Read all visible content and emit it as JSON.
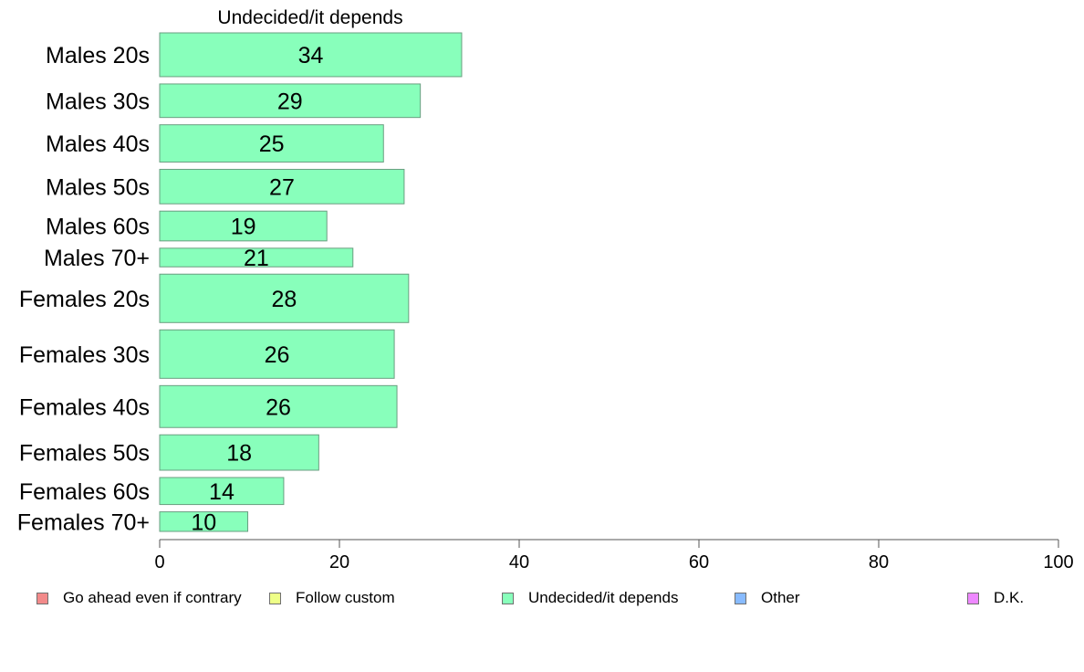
{
  "chart_data": {
    "type": "bar",
    "orientation": "horizontal",
    "title": "Undecided/it depends",
    "categories": [
      "Males 20s",
      "Males 30s",
      "Males 40s",
      "Males 50s",
      "Males 60s",
      "Males 70+",
      "Females 20s",
      "Females 30s",
      "Females 40s",
      "Females 50s",
      "Females 60s",
      "Females 70+"
    ],
    "values": [
      34,
      29,
      25,
      27,
      19,
      21,
      28,
      26,
      26,
      18,
      14,
      10
    ],
    "plotted_values": [
      33.6,
      29.0,
      24.9,
      27.2,
      18.6,
      21.5,
      27.7,
      26.1,
      26.4,
      17.7,
      13.8,
      9.8
    ],
    "relative_sample_size": [
      47,
      36,
      40,
      37,
      32,
      20,
      52,
      52,
      45,
      38,
      29,
      21
    ],
    "xlim": [
      0,
      100
    ],
    "xticks": [
      0,
      20,
      40,
      60,
      80,
      100
    ],
    "grid": false,
    "bar_color": "#88ffbb",
    "bar_edge_color": "#6a9e80",
    "legend": {
      "placement": "bottom",
      "items": [
        {
          "label": "Go ahead even if contrary",
          "color": "#f28a8a"
        },
        {
          "label": "Follow custom",
          "color": "#eeff88"
        },
        {
          "label": "Undecided/it depends",
          "color": "#88ffbb"
        },
        {
          "label": "Other",
          "color": "#88bbff"
        },
        {
          "label": "D.K.",
          "color": "#ee88ff"
        }
      ]
    }
  }
}
